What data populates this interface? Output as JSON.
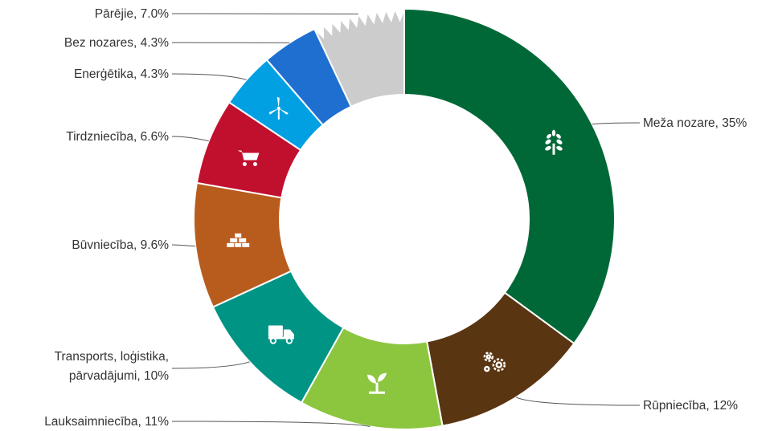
{
  "chart_data": {
    "type": "pie",
    "donut": true,
    "title": "",
    "legend": "none",
    "unit": "%",
    "slices": [
      {
        "label": "Meža nozare, 35%",
        "category": "Meža nozare",
        "value": 35,
        "color": "#006837",
        "icon": "tree-icon"
      },
      {
        "label": "Rūpniecība, 12%",
        "category": "Rūpniecība",
        "value": 12,
        "color": "#5a3511",
        "icon": "gears-icon"
      },
      {
        "label": "Lauksaimniecība, 11%",
        "category": "Lauksaimniecība",
        "value": 11,
        "color": "#8cc63f",
        "icon": "sprout-icon"
      },
      {
        "label": "Transports, loģistika,|pārvadājumi, 10%",
        "category": "Transports, loģistika, pārvadājumi",
        "value": 10,
        "color": "#009485",
        "icon": "truck-icon"
      },
      {
        "label": "Būvniecība, 9.6%",
        "category": "Būvniecība",
        "value": 9.6,
        "color": "#b85c1e",
        "icon": "bricks-icon"
      },
      {
        "label": "Tirdzniecība, 6.6%",
        "category": "Tirdzniecība",
        "value": 6.6,
        "color": "#c1102e",
        "icon": "cart-icon"
      },
      {
        "label": "Enerģētika, 4.3%",
        "category": "Enerģētika",
        "value": 4.3,
        "color": "#00a0e3",
        "icon": "wind-turbine-icon"
      },
      {
        "label": "Bez nozares, 4.3%",
        "category": "Bez nozares",
        "value": 4.3,
        "color": "#1f6fd1",
        "icon": ""
      },
      {
        "label": "Pārējie, 7.0%",
        "category": "Pārējie",
        "value": 7.0,
        "color": "#cccccc",
        "icon": "",
        "jagged": true
      }
    ]
  }
}
